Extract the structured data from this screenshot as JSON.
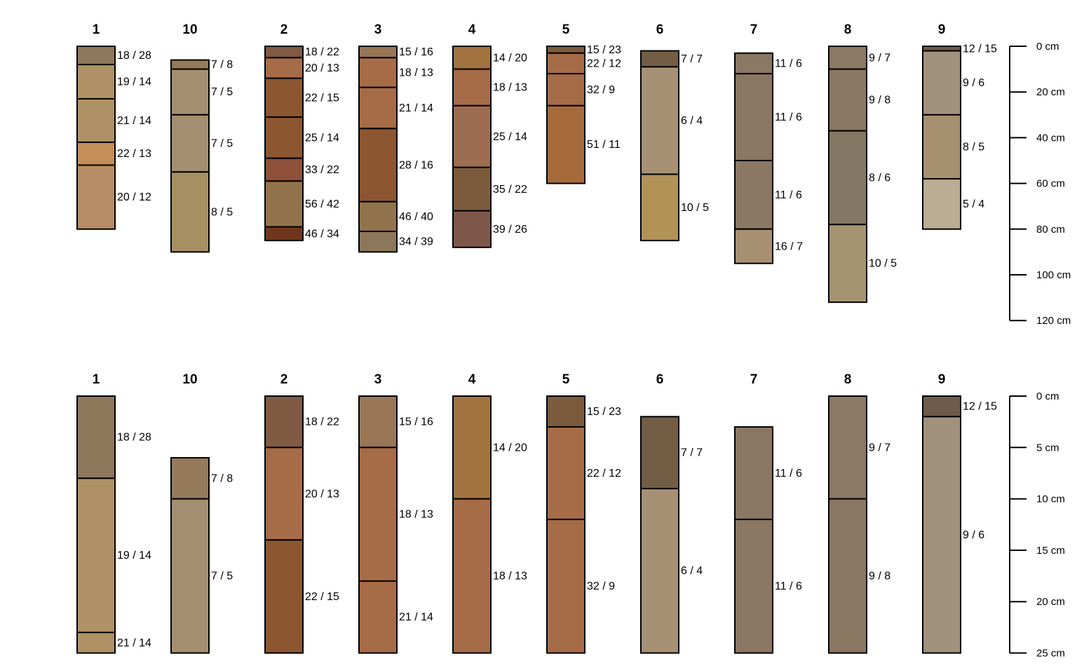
{
  "chart_data": [
    {
      "type": "soil-profile-sketch",
      "depth_units": "cm",
      "depth_axis": {
        "ticks": [
          0,
          20,
          40,
          60,
          80,
          100,
          120
        ],
        "labels": [
          "0 cm",
          "20 cm",
          "40 cm",
          "60 cm",
          "80 cm",
          "100 cm",
          "120 cm"
        ],
        "range": [
          0,
          120
        ]
      },
      "profiles": [
        {
          "id": "1",
          "horizons": [
            {
              "label": "18 / 28",
              "top": 0,
              "bottom": 8,
              "color": "#8d775b"
            },
            {
              "label": "19 / 14",
              "top": 8,
              "bottom": 23,
              "color": "#ae9266"
            },
            {
              "label": "21 / 14",
              "top": 23,
              "bottom": 42,
              "color": "#ae9266"
            },
            {
              "label": "22 / 13",
              "top": 42,
              "bottom": 52,
              "color": "#c38e59"
            },
            {
              "label": "20 / 12",
              "top": 52,
              "bottom": 80,
              "color": "#b78d66"
            }
          ]
        },
        {
          "id": "10",
          "horizons": [
            {
              "label": "7 / 8",
              "top": 6,
              "bottom": 10,
              "color": "#957a5b"
            },
            {
              "label": "7 / 5",
              "top": 10,
              "bottom": 30,
              "color": "#a58f72"
            },
            {
              "label": "7 / 5",
              "top": 30,
              "bottom": 55,
              "color": "#a58f72"
            },
            {
              "label": "8 / 5",
              "top": 55,
              "bottom": 90,
              "color": "#a69062"
            }
          ]
        },
        {
          "id": "2",
          "horizons": [
            {
              "label": "18 / 22",
              "top": 0,
              "bottom": 5,
              "color": "#805a42"
            },
            {
              "label": "20 / 13",
              "top": 5,
              "bottom": 14,
              "color": "#a66c47"
            },
            {
              "label": "22 / 15",
              "top": 14,
              "bottom": 31,
              "color": "#8b5630"
            },
            {
              "label": "25 / 14",
              "top": 31,
              "bottom": 49,
              "color": "#8b5630"
            },
            {
              "label": "33 / 22",
              "top": 49,
              "bottom": 59,
              "color": "#8e5038"
            },
            {
              "label": "56 / 42",
              "top": 59,
              "bottom": 79,
              "color": "#92744c"
            },
            {
              "label": "46 / 34",
              "top": 79,
              "bottom": 85,
              "color": "#70361e"
            }
          ]
        },
        {
          "id": "3",
          "horizons": [
            {
              "label": "15 / 16",
              "top": 0,
              "bottom": 5,
              "color": "#987656"
            },
            {
              "label": "18 / 13",
              "top": 5,
              "bottom": 18,
              "color": "#a66c47"
            },
            {
              "label": "21 / 14",
              "top": 18,
              "bottom": 36,
              "color": "#a66c47"
            },
            {
              "label": "28 / 16",
              "top": 36,
              "bottom": 68,
              "color": "#8b5630"
            },
            {
              "label": "46 / 40",
              "top": 68,
              "bottom": 81,
              "color": "#92744c"
            },
            {
              "label": "34 / 39",
              "top": 81,
              "bottom": 90,
              "color": "#8d775b"
            }
          ]
        },
        {
          "id": "4",
          "horizons": [
            {
              "label": "14 / 20",
              "top": 0,
              "bottom": 10,
              "color": "#a37241"
            },
            {
              "label": "18 / 13",
              "top": 10,
              "bottom": 26,
              "color": "#a66c47"
            },
            {
              "label": "25 / 14",
              "top": 26,
              "bottom": 53,
              "color": "#9e6d50"
            },
            {
              "label": "35 / 22",
              "top": 53,
              "bottom": 72,
              "color": "#7c5b3c"
            },
            {
              "label": "39 / 26",
              "top": 72,
              "bottom": 88,
              "color": "#7e574b"
            }
          ]
        },
        {
          "id": "5",
          "horizons": [
            {
              "label": "15 / 23",
              "top": 0,
              "bottom": 3,
              "color": "#7c5b3c"
            },
            {
              "label": "22 / 12",
              "top": 3,
              "bottom": 12,
              "color": "#a66c47"
            },
            {
              "label": "32 / 9",
              "top": 12,
              "bottom": 26,
              "color": "#a66c47"
            },
            {
              "label": "51 / 11",
              "top": 26,
              "bottom": 60,
              "color": "#a76b3b"
            }
          ]
        },
        {
          "id": "6",
          "horizons": [
            {
              "label": "7 / 7",
              "top": 2,
              "bottom": 9,
              "color": "#735d44"
            },
            {
              "label": "6 / 4",
              "top": 9,
              "bottom": 56,
              "color": "#a69175"
            },
            {
              "label": "10 / 5",
              "top": 56,
              "bottom": 85,
              "color": "#b29357"
            }
          ]
        },
        {
          "id": "7",
          "horizons": [
            {
              "label": "11 / 6",
              "top": 3,
              "bottom": 12,
              "color": "#8a7764"
            },
            {
              "label": "11 / 6",
              "top": 12,
              "bottom": 50,
              "color": "#8a7764"
            },
            {
              "label": "11 / 6",
              "top": 50,
              "bottom": 80,
              "color": "#8a7764"
            },
            {
              "label": "16 / 7",
              "top": 80,
              "bottom": 95,
              "color": "#a68f72"
            }
          ]
        },
        {
          "id": "8",
          "horizons": [
            {
              "label": "9 / 7",
              "top": 0,
              "bottom": 10,
              "color": "#8b7965"
            },
            {
              "label": "9 / 8",
              "top": 10,
              "bottom": 37,
              "color": "#8a7762"
            },
            {
              "label": "8 / 6",
              "top": 37,
              "bottom": 78,
              "color": "#837863"
            },
            {
              "label": "10 / 5",
              "top": 78,
              "bottom": 112,
              "color": "#a69470"
            }
          ]
        },
        {
          "id": "9",
          "horizons": [
            {
              "label": "12 / 15",
              "top": 0,
              "bottom": 2,
              "color": "#6e5c4a"
            },
            {
              "label": "9 / 6",
              "top": 2,
              "bottom": 30,
              "color": "#a2917d"
            },
            {
              "label": "8 / 5",
              "top": 30,
              "bottom": 58,
              "color": "#a69070"
            },
            {
              "label": "5 / 4",
              "top": 58,
              "bottom": 80,
              "color": "#baad94"
            }
          ]
        }
      ]
    },
    {
      "type": "soil-profile-sketch",
      "depth_units": "cm",
      "depth_axis": {
        "ticks": [
          0,
          5,
          10,
          15,
          20,
          25
        ],
        "labels": [
          "0 cm",
          "5 cm",
          "10 cm",
          "15 cm",
          "20 cm",
          "25 cm"
        ],
        "range": [
          0,
          25
        ]
      },
      "profiles": [
        {
          "id": "1",
          "horizons": [
            {
              "label": "18 / 28",
              "top": 0,
              "bottom": 8,
              "color": "#8d775b"
            },
            {
              "label": "19 / 14",
              "top": 8,
              "bottom": 23,
              "color": "#ae9266"
            },
            {
              "label": "21 / 14",
              "top": 23,
              "bottom": 25,
              "color": "#ae9266"
            }
          ]
        },
        {
          "id": "10",
          "horizons": [
            {
              "label": "7 / 8",
              "top": 6,
              "bottom": 10,
              "color": "#957a5b"
            },
            {
              "label": "7 / 5",
              "top": 10,
              "bottom": 25,
              "color": "#a58f72"
            }
          ]
        },
        {
          "id": "2",
          "horizons": [
            {
              "label": "18 / 22",
              "top": 0,
              "bottom": 5,
              "color": "#805a42"
            },
            {
              "label": "20 / 13",
              "top": 5,
              "bottom": 14,
              "color": "#a66c47"
            },
            {
              "label": "22 / 15",
              "top": 14,
              "bottom": 25,
              "color": "#8b5630"
            }
          ]
        },
        {
          "id": "3",
          "horizons": [
            {
              "label": "15 / 16",
              "top": 0,
              "bottom": 5,
              "color": "#987656"
            },
            {
              "label": "18 / 13",
              "top": 5,
              "bottom": 18,
              "color": "#a66c47"
            },
            {
              "label": "21 / 14",
              "top": 18,
              "bottom": 25,
              "color": "#a66c47"
            }
          ]
        },
        {
          "id": "4",
          "horizons": [
            {
              "label": "14 / 20",
              "top": 0,
              "bottom": 10,
              "color": "#a37241"
            },
            {
              "label": "18 / 13",
              "top": 10,
              "bottom": 25,
              "color": "#a66c47"
            }
          ]
        },
        {
          "id": "5",
          "horizons": [
            {
              "label": "15 / 23",
              "top": 0,
              "bottom": 3,
              "color": "#7c5b3c"
            },
            {
              "label": "22 / 12",
              "top": 3,
              "bottom": 12,
              "color": "#a66c47"
            },
            {
              "label": "32 / 9",
              "top": 12,
              "bottom": 25,
              "color": "#a66c47"
            }
          ]
        },
        {
          "id": "6",
          "horizons": [
            {
              "label": "7 / 7",
              "top": 2,
              "bottom": 9,
              "color": "#735d44"
            },
            {
              "label": "6 / 4",
              "top": 9,
              "bottom": 25,
              "color": "#a69175"
            }
          ]
        },
        {
          "id": "7",
          "horizons": [
            {
              "label": "11 / 6",
              "top": 3,
              "bottom": 12,
              "color": "#8a7764"
            },
            {
              "label": "11 / 6",
              "top": 12,
              "bottom": 25,
              "color": "#8a7764"
            }
          ]
        },
        {
          "id": "8",
          "horizons": [
            {
              "label": "9 / 7",
              "top": 0,
              "bottom": 10,
              "color": "#8b7965"
            },
            {
              "label": "9 / 8",
              "top": 10,
              "bottom": 25,
              "color": "#8a7762"
            }
          ]
        },
        {
          "id": "9",
          "horizons": [
            {
              "label": "12 / 15",
              "top": 0,
              "bottom": 2,
              "color": "#6e5c4a"
            },
            {
              "label": "9 / 6",
              "top": 2,
              "bottom": 25,
              "color": "#a2917d"
            }
          ]
        }
      ]
    }
  ]
}
